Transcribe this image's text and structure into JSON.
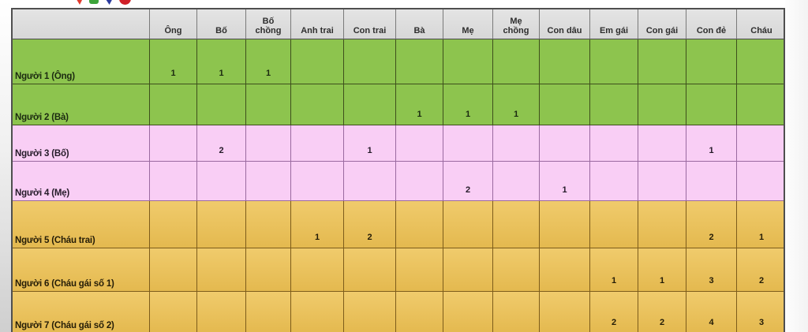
{
  "logo": {
    "name": "tv-channel-logo-cropped",
    "colors": [
      "#e23b2e",
      "#3da43a",
      "#2a3a9e",
      "#d02028"
    ]
  },
  "table": {
    "corner_label": "",
    "columns": [
      "Ông",
      "Bố",
      "Bố chồng",
      "Anh trai",
      "Con trai",
      "Bà",
      "Mẹ",
      "Mẹ chồng",
      "Con dâu",
      "Em gái",
      "Con gái",
      "Con đẻ",
      "Cháu"
    ],
    "rows": [
      {
        "label": "Người 1 (Ông)",
        "band": "green",
        "values": [
          "1",
          "1",
          "1",
          "",
          "",
          "",
          "",
          "",
          "",
          "",
          "",
          "",
          ""
        ]
      },
      {
        "label": "Người 2 (Bà)",
        "band": "green",
        "values": [
          "",
          "",
          "",
          "",
          "",
          "1",
          "1",
          "1",
          "",
          "",
          "",
          "",
          ""
        ]
      },
      {
        "label": "Người 3 (Bố)",
        "band": "pink",
        "values": [
          "",
          "2",
          "",
          "",
          "1",
          "",
          "",
          "",
          "",
          "",
          "",
          "1",
          ""
        ]
      },
      {
        "label": "Người 4 (Mẹ)",
        "band": "pink",
        "values": [
          "",
          "",
          "",
          "",
          "",
          "",
          "2",
          "",
          "1",
          "",
          "",
          "",
          ""
        ]
      },
      {
        "label": "Người 5 (Cháu trai)",
        "band": "orange",
        "values": [
          "",
          "",
          "",
          "1",
          "2",
          "",
          "",
          "",
          "",
          "",
          "",
          "2",
          "1"
        ]
      },
      {
        "label": "Người 6 (Cháu gái số 1)",
        "band": "orange",
        "values": [
          "",
          "",
          "",
          "",
          "",
          "",
          "",
          "",
          "",
          "1",
          "1",
          "3",
          "2"
        ]
      },
      {
        "label": "Người 7 (Cháu gái số 2)",
        "band": "orange",
        "values": [
          "",
          "",
          "",
          "",
          "",
          "",
          "",
          "",
          "",
          "2",
          "2",
          "4",
          "3"
        ]
      }
    ],
    "band_colors": {
      "header": "#dbdbdb",
      "green": "#8dc44e",
      "pink": "#f9cef5",
      "orange": "#e8bd55"
    }
  }
}
